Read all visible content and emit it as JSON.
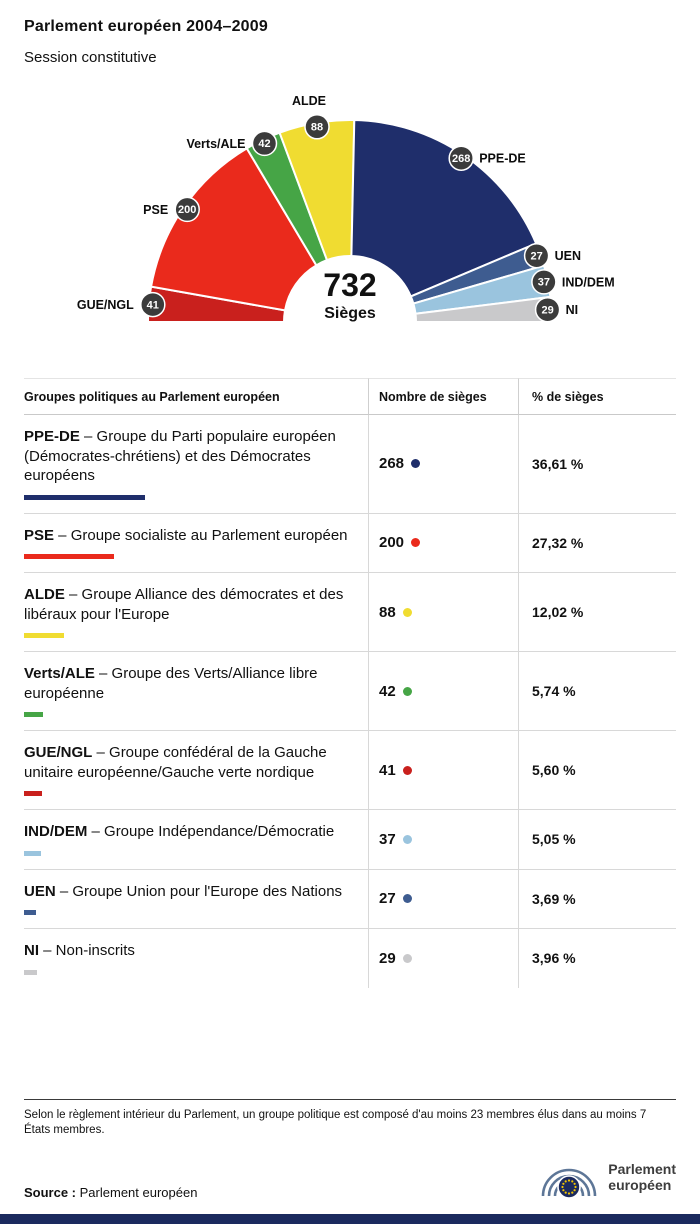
{
  "header": {
    "title": "Parlement européen 2004–2009",
    "subtitle": "Session constitutive"
  },
  "chart_data": {
    "type": "pie",
    "variant": "hemicycle",
    "title": "Parlement européen 2004–2009",
    "subtitle": "Session constitutive",
    "total_seats": 732,
    "center_value": "732",
    "center_label": "Sièges",
    "groups": [
      {
        "abbr": "GUE/NGL",
        "seats": 41,
        "pct": "5,60 %",
        "color": "#c9201d",
        "label_side": "left"
      },
      {
        "abbr": "PSE",
        "seats": 200,
        "pct": "27,32 %",
        "color": "#ea2a1c",
        "label_side": "left"
      },
      {
        "abbr": "Verts/ALE",
        "seats": 42,
        "pct": "5,74 %",
        "color": "#46a546",
        "label_side": "left"
      },
      {
        "abbr": "ALDE",
        "seats": 88,
        "pct": "12,02 %",
        "color": "#f0dc31",
        "label_side": "top"
      },
      {
        "abbr": "PPE-DE",
        "seats": 268,
        "pct": "36,61 %",
        "color": "#1f2e6b",
        "label_side": "right"
      },
      {
        "abbr": "UEN",
        "seats": 27,
        "pct": "3,69 %",
        "color": "#3e5c90",
        "label_side": "right"
      },
      {
        "abbr": "IND/DEM",
        "seats": 37,
        "pct": "5,05 %",
        "color": "#9ac4de",
        "label_side": "right"
      },
      {
        "abbr": "NI",
        "seats": 29,
        "pct": "3,96 %",
        "color": "#c9c9cb",
        "label_side": "right"
      }
    ]
  },
  "table": {
    "headers": [
      "Groupes politiques au Parlement européen",
      "Nombre de sièges",
      "% de sièges"
    ],
    "rows": [
      {
        "abbr": "PPE-DE",
        "desc": " – Groupe du Parti populaire européen (Démocrates-chrétiens) et des Démocrates européens",
        "seats": "268",
        "pct": "36,61 %",
        "color": "#1f2e6b",
        "share": 36.61
      },
      {
        "abbr": "PSE",
        "desc": " – Groupe socialiste au Parlement européen",
        "seats": "200",
        "pct": "27,32 %",
        "color": "#ea2a1c",
        "share": 27.32
      },
      {
        "abbr": "ALDE",
        "desc": " – Groupe Alliance des démocrates et des libéraux pour l'Europe",
        "seats": "88",
        "pct": "12,02 %",
        "color": "#f0dc31",
        "share": 12.02
      },
      {
        "abbr": "Verts/ALE",
        "desc": " – Groupe des Verts/Alliance libre européenne",
        "seats": "42",
        "pct": "5,74 %",
        "color": "#46a546",
        "share": 5.74
      },
      {
        "abbr": "GUE/NGL",
        "desc": " – Groupe confédéral de la Gauche unitaire européenne/Gauche verte nordique",
        "seats": "41",
        "pct": "5,60 %",
        "color": "#c9201d",
        "share": 5.6
      },
      {
        "abbr": "IND/DEM",
        "desc": " – Groupe Indépendance/Démocratie",
        "seats": "37",
        "pct": "5,05 %",
        "color": "#9ac4de",
        "share": 5.05
      },
      {
        "abbr": "UEN",
        "desc": " – Groupe Union pour l'Europe des Nations",
        "seats": "27",
        "pct": "3,69 %",
        "color": "#3e5c90",
        "share": 3.69
      },
      {
        "abbr": "NI",
        "desc": " – Non-inscrits",
        "seats": "29",
        "pct": "3,96 %",
        "color": "#c9c9cb",
        "share": 3.96
      }
    ]
  },
  "footer": {
    "note": "Selon le règlement intérieur du Parlement, un groupe politique est composé d'au moins 23 membres élus dans au moins 7 États membres.",
    "source_label": "Source :",
    "source_value": "Parlement européen",
    "logo_line1": "Parlement",
    "logo_line2": "européen"
  }
}
